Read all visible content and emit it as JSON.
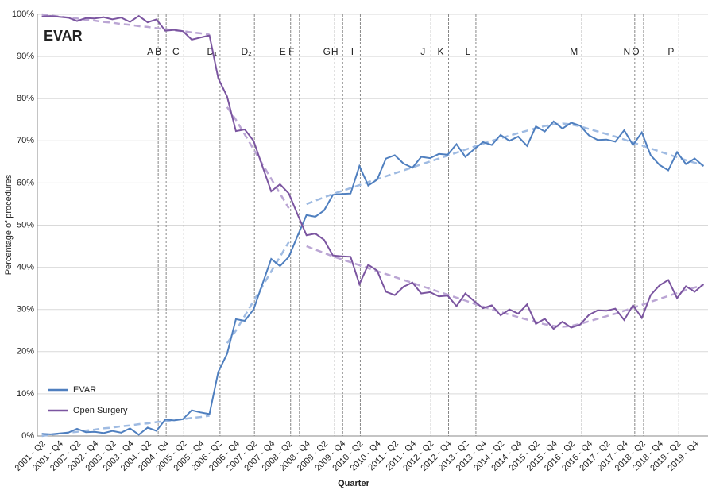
{
  "chart_data": {
    "type": "line",
    "title": "EVAR",
    "x_label": "Quarter",
    "y_label": "Percentage of procedures",
    "categories": [
      "2001 - Q2",
      null,
      "2001 - Q4",
      null,
      "2002 - Q2",
      null,
      "2002 - Q4",
      null,
      "2003 - Q2",
      null,
      "2003 - Q4",
      null,
      "2004 - Q2",
      null,
      "2004 - Q4",
      null,
      "2005 - Q2",
      null,
      "2005 - Q4",
      null,
      "2006 - Q2",
      null,
      "2006 - Q4",
      null,
      "2007 - Q2",
      null,
      "2007 - Q4",
      null,
      "2008 - Q2",
      null,
      "2008 - Q4",
      null,
      "2009 - Q2",
      null,
      "2009 - Q4",
      null,
      "2010 - Q2",
      null,
      "2010 - Q4",
      null,
      "2011 - Q2",
      null,
      "2011 - Q4",
      null,
      "2012 - Q2",
      null,
      "2012 - Q4",
      null,
      "2013 - Q2",
      null,
      "2013 - Q4",
      null,
      "2014 - Q2",
      null,
      "2014 - Q4",
      null,
      "2015 - Q2",
      null,
      "2015 - Q4",
      null,
      "2016 - Q2",
      null,
      "2016 - Q4",
      null,
      "2017 - Q2",
      null,
      "2017 - Q4",
      null,
      "2018 - Q2",
      null,
      "2018 - Q4",
      null,
      "2019 - Q2",
      null,
      "2019 - Q4",
      null
    ],
    "series": [
      {
        "name": "EVAR",
        "color": "#4f7fbf",
        "values": [
          0.5,
          0.4,
          0.6,
          0.8,
          1.7,
          0.9,
          1.0,
          0.7,
          1.2,
          0.8,
          1.8,
          0.3,
          2.0,
          1.2,
          3.9,
          3.7,
          4.0,
          6.1,
          5.6,
          5.2,
          15.2,
          19.5,
          27.7,
          27.3,
          30.0,
          36.0,
          42.0,
          40.3,
          42.5,
          47.5,
          52.4,
          52.0,
          53.5,
          57.2,
          57.4,
          57.5,
          64.0,
          59.4,
          60.8,
          65.8,
          66.6,
          64.6,
          63.6,
          66.2,
          65.9,
          66.9,
          66.7,
          69.2,
          66.2,
          68.0,
          69.7,
          69.0,
          71.4,
          70.0,
          71.0,
          68.8,
          73.4,
          72.2,
          74.6,
          72.9,
          74.3,
          73.6,
          71.3,
          70.2,
          70.3,
          69.8,
          72.5,
          69.0,
          72.0,
          66.6,
          64.3,
          63.0,
          67.3,
          64.5,
          65.8,
          64.0
        ]
      },
      {
        "name": "Open Surgery",
        "color": "#7b55a0",
        "values": [
          99.5,
          99.6,
          99.4,
          99.2,
          98.4,
          99.1,
          99.0,
          99.3,
          98.8,
          99.2,
          98.2,
          99.6,
          98.1,
          98.8,
          96.1,
          96.3,
          96.0,
          94.0,
          94.5,
          95.0,
          84.8,
          80.5,
          72.3,
          72.7,
          70.0,
          64.0,
          58.0,
          59.7,
          57.5,
          52.5,
          47.6,
          48.0,
          46.5,
          42.8,
          42.6,
          42.5,
          36.0,
          40.6,
          39.2,
          34.2,
          33.4,
          35.4,
          36.4,
          33.8,
          34.1,
          33.1,
          33.3,
          30.8,
          33.8,
          32.0,
          30.3,
          31.0,
          28.6,
          30.0,
          29.0,
          31.2,
          26.6,
          27.8,
          25.4,
          27.1,
          25.7,
          26.4,
          28.7,
          29.8,
          29.7,
          30.2,
          27.5,
          31.0,
          28.0,
          33.4,
          35.7,
          37.0,
          32.7,
          35.5,
          34.2,
          36.0
        ]
      },
      {
        "color": "#9fbbe2",
        "dashed": true,
        "values": [
          0,
          0.3,
          0.5,
          0.8,
          1.0,
          1.3,
          1.5,
          1.8,
          2.0,
          2.3,
          2.5,
          2.8,
          3.0,
          3.3,
          3.5,
          3.8,
          4.0,
          4.3,
          4.5,
          4.8,
          null,
          22,
          25,
          28.5,
          32,
          35.5,
          39,
          42.5,
          46,
          null,
          55.0,
          55.8,
          56.6,
          57.4,
          58.1,
          58.8,
          59.5,
          60.2,
          60.9,
          61.6,
          62.3,
          63.0,
          63.7,
          64.4,
          65.1,
          65.8,
          66.5,
          67.2,
          67.9,
          68.6,
          69.3,
          70.0,
          70.6,
          71.2,
          71.8,
          72.4,
          73.0,
          73.5,
          73.9,
          74.1,
          73.9,
          73.4,
          72.8,
          72.2,
          71.6,
          71.0,
          70.3,
          69.6,
          68.9,
          68.2,
          67.5,
          66.8,
          66.1,
          65.4,
          64.8,
          64.2
        ]
      },
      {
        "color": "#bba6d4",
        "dashed": true,
        "values": [
          100,
          99.7,
          99.5,
          99.2,
          99.0,
          98.7,
          98.5,
          98.2,
          98.0,
          97.7,
          97.5,
          97.2,
          97.0,
          96.7,
          96.5,
          96.2,
          96.0,
          95.7,
          95.5,
          95.2,
          null,
          78,
          75,
          71.5,
          68,
          64.5,
          61,
          57.5,
          54,
          null,
          45.0,
          44.2,
          43.4,
          42.6,
          41.9,
          41.2,
          40.5,
          39.8,
          39.1,
          38.4,
          37.7,
          37.0,
          36.3,
          35.6,
          34.9,
          34.2,
          33.5,
          32.8,
          32.1,
          31.4,
          30.7,
          30.0,
          29.4,
          28.8,
          28.2,
          27.6,
          27.0,
          26.5,
          26.1,
          25.9,
          26.1,
          26.6,
          27.2,
          27.8,
          28.4,
          29.0,
          29.7,
          30.4,
          31.1,
          31.8,
          32.5,
          33.2,
          33.9,
          34.6,
          35.2,
          35.8
        ]
      }
    ],
    "annotations": [
      {
        "label": "A",
        "x": 13.2
      },
      {
        "label": "B",
        "x": 14.1
      },
      {
        "label": "C",
        "x": 16.1
      },
      {
        "label": "D₁",
        "x": 20.2
      },
      {
        "label": "D₂",
        "x": 24.1
      },
      {
        "label": "E",
        "x": 28.2
      },
      {
        "label": "F",
        "x": 29.2
      },
      {
        "label": "G",
        "x": 33.2
      },
      {
        "label": "H",
        "x": 34.1
      },
      {
        "label": "I",
        "x": 36.1
      },
      {
        "label": "J",
        "x": 44.1
      },
      {
        "label": "K",
        "x": 46.1
      },
      {
        "label": "L",
        "x": 49.2
      },
      {
        "label": "M",
        "x": 61.2
      },
      {
        "label": "N",
        "x": 67.2
      },
      {
        "label": "O",
        "x": 68.2
      },
      {
        "label": "P",
        "x": 72.2
      }
    ],
    "ylim": [
      0,
      100
    ],
    "yticks": [
      {
        "value": 0,
        "label": "0%"
      },
      {
        "value": 10,
        "label": "10%"
      },
      {
        "value": 20,
        "label": "20%"
      },
      {
        "value": 30,
        "label": "30%"
      },
      {
        "value": 40,
        "label": "40%"
      },
      {
        "value": 50,
        "label": "50%"
      },
      {
        "value": 60,
        "label": "60%"
      },
      {
        "value": 70,
        "label": "70%"
      },
      {
        "value": 80,
        "label": "80%"
      },
      {
        "value": 90,
        "label": "90%"
      },
      {
        "value": 100,
        "label": "100%"
      }
    ],
    "grid": true,
    "legend": "lower left"
  }
}
